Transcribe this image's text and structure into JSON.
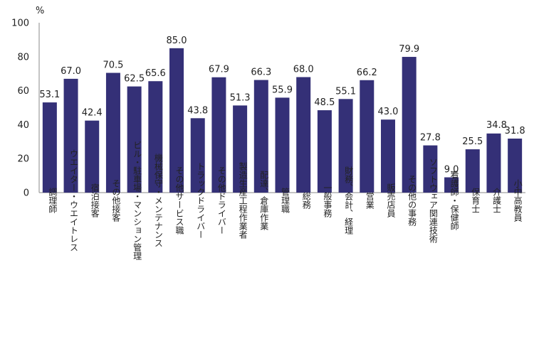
{
  "chart_data": {
    "type": "bar",
    "unit_label": "%",
    "ylim": [
      0,
      100
    ],
    "y_ticks": [
      "0",
      "20",
      "40",
      "60",
      "80",
      "100"
    ],
    "categories": [
      "調理師",
      "ウエイター・ウエイトレス",
      "宿泊接客",
      "その他接客",
      "ビル・駐車場・マンション管理",
      "機械保守・メンテナンス",
      "その他サービス職",
      "トラックドライバー",
      "その他ドライバー",
      "製造生産工程作業者",
      "配達、倉庫作業",
      "管理職",
      "総務",
      "一般事務",
      "財務、会計、経理",
      "営業",
      "販売店員",
      "その他の事務",
      "ソフトウェア関連技術",
      "看護師・保健師",
      "保育士",
      "介護士",
      "小中高教員"
    ],
    "values": [
      53.1,
      67.0,
      42.4,
      70.5,
      62.5,
      65.6,
      85.0,
      43.8,
      67.9,
      51.3,
      66.3,
      55.9,
      68.0,
      48.5,
      55.1,
      66.2,
      43.0,
      79.9,
      27.8,
      9.0,
      25.5,
      34.8,
      31.8
    ],
    "value_labels": [
      "53.1",
      "67.0",
      "42.4",
      "70.5",
      "62.5",
      "65.6",
      "85.0",
      "43.8",
      "67.9",
      "51.3",
      "66.3",
      "55.9",
      "68.0",
      "48.5",
      "55.1",
      "66.2",
      "43.0",
      "79.9",
      "27.8",
      "9.0",
      "25.5",
      "34.8",
      "31.8"
    ],
    "bar_color": "#343077",
    "grid": false,
    "legend": "none"
  }
}
